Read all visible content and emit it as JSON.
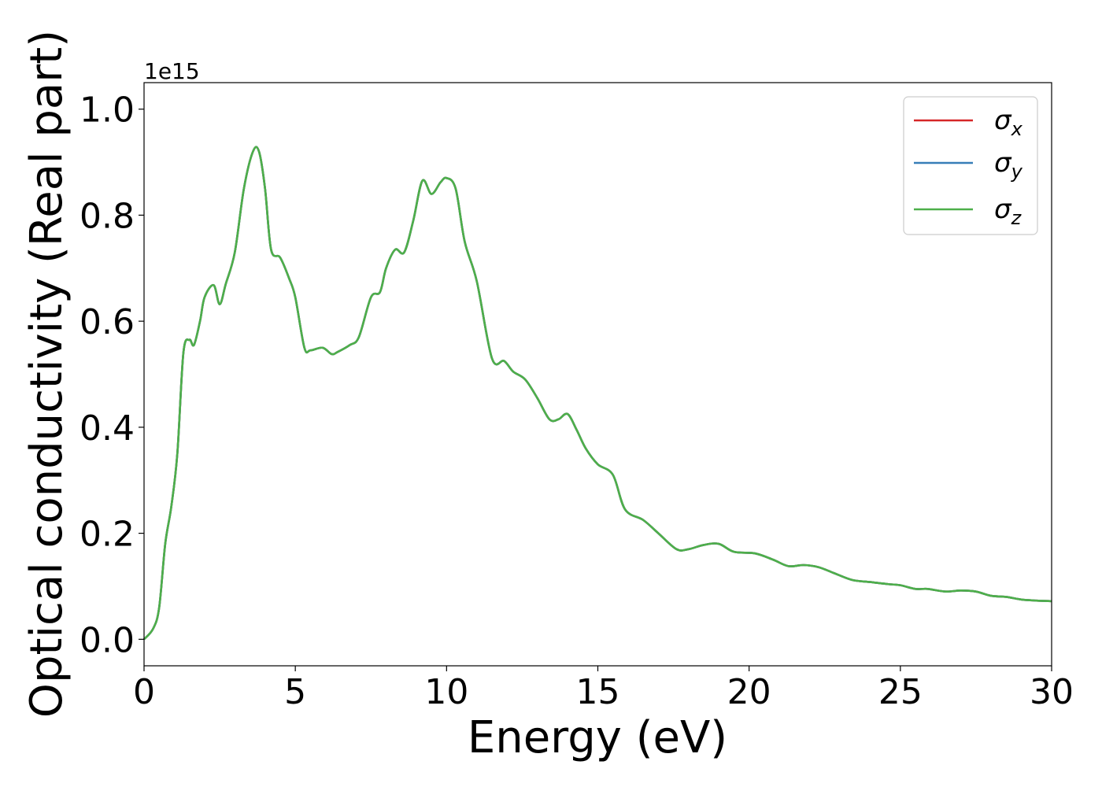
{
  "chart_data": {
    "type": "line",
    "xlabel": "Energy (eV)",
    "ylabel": "Optical conductivity (Real part)",
    "y_offset_label": "1e15",
    "xlim": [
      0,
      30
    ],
    "ylim": [
      -0.05,
      1.05
    ],
    "x_ticks": [
      0,
      5,
      10,
      15,
      20,
      25,
      30
    ],
    "y_ticks": [
      0.0,
      0.2,
      0.4,
      0.6,
      0.8,
      1.0
    ],
    "x_tick_labels": [
      "0",
      "5",
      "10",
      "15",
      "20",
      "25",
      "30"
    ],
    "y_tick_labels": [
      "0.0",
      "0.2",
      "0.4",
      "0.6",
      "0.8",
      "1.0"
    ],
    "grid": false,
    "legend_position": "top-right",
    "series": [
      {
        "name": "σx",
        "symbol": "σ",
        "subscript": "x",
        "color": "#d62728",
        "x": [
          0,
          0.3,
          0.5,
          0.7,
          0.9,
          1.1,
          1.3,
          1.5,
          1.65,
          1.85,
          2.0,
          2.3,
          2.5,
          2.7,
          3.0,
          3.3,
          3.6,
          3.8,
          4.0,
          4.2,
          4.5,
          4.8,
          5.0,
          5.3,
          5.5,
          5.9,
          6.2,
          6.4,
          6.8,
          7.1,
          7.5,
          7.8,
          8.0,
          8.3,
          8.6,
          8.9,
          9.2,
          9.5,
          9.8,
          10.0,
          10.3,
          10.6,
          11.0,
          11.5,
          11.9,
          12.2,
          12.6,
          13.0,
          13.4,
          13.7,
          14.0,
          14.3,
          14.6,
          15.0,
          15.5,
          15.9,
          16.5,
          17.0,
          17.6,
          18.0,
          18.5,
          19.0,
          19.5,
          20.2,
          20.8,
          21.3,
          21.8,
          22.3,
          22.8,
          23.4,
          24.0,
          24.6,
          25.0,
          25.5,
          25.9,
          26.5,
          27.0,
          27.5,
          28.0,
          28.5,
          29.0,
          29.5,
          30.0
        ],
        "values": [
          0.0,
          0.02,
          0.06,
          0.18,
          0.25,
          0.35,
          0.54,
          0.565,
          0.555,
          0.6,
          0.645,
          0.668,
          0.632,
          0.67,
          0.73,
          0.85,
          0.92,
          0.92,
          0.85,
          0.735,
          0.72,
          0.68,
          0.645,
          0.55,
          0.545,
          0.55,
          0.538,
          0.542,
          0.555,
          0.57,
          0.645,
          0.655,
          0.7,
          0.735,
          0.73,
          0.79,
          0.865,
          0.84,
          0.862,
          0.87,
          0.85,
          0.75,
          0.675,
          0.53,
          0.525,
          0.505,
          0.49,
          0.455,
          0.415,
          0.415,
          0.425,
          0.395,
          0.36,
          0.33,
          0.31,
          0.245,
          0.225,
          0.2,
          0.17,
          0.17,
          0.178,
          0.18,
          0.165,
          0.162,
          0.15,
          0.138,
          0.14,
          0.136,
          0.125,
          0.112,
          0.108,
          0.104,
          0.102,
          0.095,
          0.095,
          0.09,
          0.092,
          0.09,
          0.082,
          0.08,
          0.075,
          0.073,
          0.072
        ]
      },
      {
        "name": "σy",
        "symbol": "σ",
        "subscript": "y",
        "color": "#377eb8",
        "x": [
          0,
          0.3,
          0.5,
          0.7,
          0.9,
          1.1,
          1.3,
          1.5,
          1.65,
          1.85,
          2.0,
          2.3,
          2.5,
          2.7,
          3.0,
          3.3,
          3.6,
          3.8,
          4.0,
          4.2,
          4.5,
          4.8,
          5.0,
          5.3,
          5.5,
          5.9,
          6.2,
          6.4,
          6.8,
          7.1,
          7.5,
          7.8,
          8.0,
          8.3,
          8.6,
          8.9,
          9.2,
          9.5,
          9.8,
          10.0,
          10.3,
          10.6,
          11.0,
          11.5,
          11.9,
          12.2,
          12.6,
          13.0,
          13.4,
          13.7,
          14.0,
          14.3,
          14.6,
          15.0,
          15.5,
          15.9,
          16.5,
          17.0,
          17.6,
          18.0,
          18.5,
          19.0,
          19.5,
          20.2,
          20.8,
          21.3,
          21.8,
          22.3,
          22.8,
          23.4,
          24.0,
          24.6,
          25.0,
          25.5,
          25.9,
          26.5,
          27.0,
          27.5,
          28.0,
          28.5,
          29.0,
          29.5,
          30.0
        ],
        "values": [
          0.0,
          0.02,
          0.06,
          0.18,
          0.25,
          0.35,
          0.54,
          0.565,
          0.555,
          0.6,
          0.645,
          0.668,
          0.632,
          0.67,
          0.73,
          0.85,
          0.92,
          0.92,
          0.85,
          0.735,
          0.72,
          0.68,
          0.645,
          0.55,
          0.545,
          0.55,
          0.538,
          0.542,
          0.555,
          0.57,
          0.645,
          0.655,
          0.7,
          0.735,
          0.73,
          0.79,
          0.865,
          0.84,
          0.862,
          0.87,
          0.85,
          0.75,
          0.675,
          0.53,
          0.525,
          0.505,
          0.49,
          0.455,
          0.415,
          0.415,
          0.425,
          0.395,
          0.36,
          0.33,
          0.31,
          0.245,
          0.225,
          0.2,
          0.17,
          0.17,
          0.178,
          0.18,
          0.165,
          0.162,
          0.15,
          0.138,
          0.14,
          0.136,
          0.125,
          0.112,
          0.108,
          0.104,
          0.102,
          0.095,
          0.095,
          0.09,
          0.092,
          0.09,
          0.082,
          0.08,
          0.075,
          0.073,
          0.072
        ]
      },
      {
        "name": "σz",
        "symbol": "σ",
        "subscript": "z",
        "color": "#4daf4a",
        "x": [
          0,
          0.3,
          0.5,
          0.7,
          0.9,
          1.1,
          1.3,
          1.5,
          1.65,
          1.85,
          2.0,
          2.3,
          2.5,
          2.7,
          3.0,
          3.3,
          3.6,
          3.8,
          4.0,
          4.2,
          4.5,
          4.8,
          5.0,
          5.3,
          5.5,
          5.9,
          6.2,
          6.4,
          6.8,
          7.1,
          7.5,
          7.8,
          8.0,
          8.3,
          8.6,
          8.9,
          9.2,
          9.5,
          9.8,
          10.0,
          10.3,
          10.6,
          11.0,
          11.5,
          11.9,
          12.2,
          12.6,
          13.0,
          13.4,
          13.7,
          14.0,
          14.3,
          14.6,
          15.0,
          15.5,
          15.9,
          16.5,
          17.0,
          17.6,
          18.0,
          18.5,
          19.0,
          19.5,
          20.2,
          20.8,
          21.3,
          21.8,
          22.3,
          22.8,
          23.4,
          24.0,
          24.6,
          25.0,
          25.5,
          25.9,
          26.5,
          27.0,
          27.5,
          28.0,
          28.5,
          29.0,
          29.5,
          30.0
        ],
        "values": [
          0.0,
          0.02,
          0.06,
          0.18,
          0.25,
          0.35,
          0.54,
          0.565,
          0.555,
          0.6,
          0.645,
          0.668,
          0.632,
          0.67,
          0.73,
          0.85,
          0.92,
          0.92,
          0.85,
          0.735,
          0.72,
          0.68,
          0.645,
          0.55,
          0.545,
          0.55,
          0.538,
          0.542,
          0.555,
          0.57,
          0.645,
          0.655,
          0.7,
          0.735,
          0.73,
          0.79,
          0.865,
          0.84,
          0.862,
          0.87,
          0.85,
          0.75,
          0.675,
          0.53,
          0.525,
          0.505,
          0.49,
          0.455,
          0.415,
          0.415,
          0.425,
          0.395,
          0.36,
          0.33,
          0.31,
          0.245,
          0.225,
          0.2,
          0.17,
          0.17,
          0.178,
          0.18,
          0.165,
          0.162,
          0.15,
          0.138,
          0.14,
          0.136,
          0.125,
          0.112,
          0.108,
          0.104,
          0.102,
          0.095,
          0.095,
          0.09,
          0.092,
          0.09,
          0.082,
          0.08,
          0.075,
          0.073,
          0.072
        ]
      }
    ]
  }
}
